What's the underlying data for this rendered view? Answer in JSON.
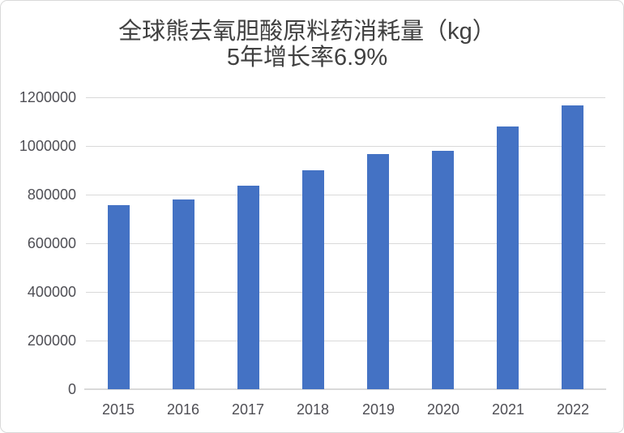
{
  "chart_data": {
    "type": "bar",
    "title": "全球熊去氧胆酸原料药消耗量（kg）",
    "subtitle": "5年增长率6.9%",
    "categories": [
      "2015",
      "2016",
      "2017",
      "2018",
      "2019",
      "2020",
      "2021",
      "2022"
    ],
    "values": [
      755000,
      780000,
      835000,
      900000,
      965000,
      980000,
      1080000,
      1165000
    ],
    "xlabel": "",
    "ylabel": "",
    "ylim": [
      0,
      1200000
    ],
    "ytick_step": 200000,
    "ytick_labels": [
      "0",
      "200000",
      "400000",
      "600000",
      "800000",
      "1000000",
      "1200000"
    ],
    "grid": true,
    "legend": "none"
  },
  "colors": {
    "bar": "#4472C4",
    "gridline": "#D9D9D9",
    "axis_line": "#D9D9D9",
    "tick_text": "#4F4F55",
    "title_text": "#404040",
    "background": "#FFFFFF",
    "border": "#D9D9D9"
  }
}
